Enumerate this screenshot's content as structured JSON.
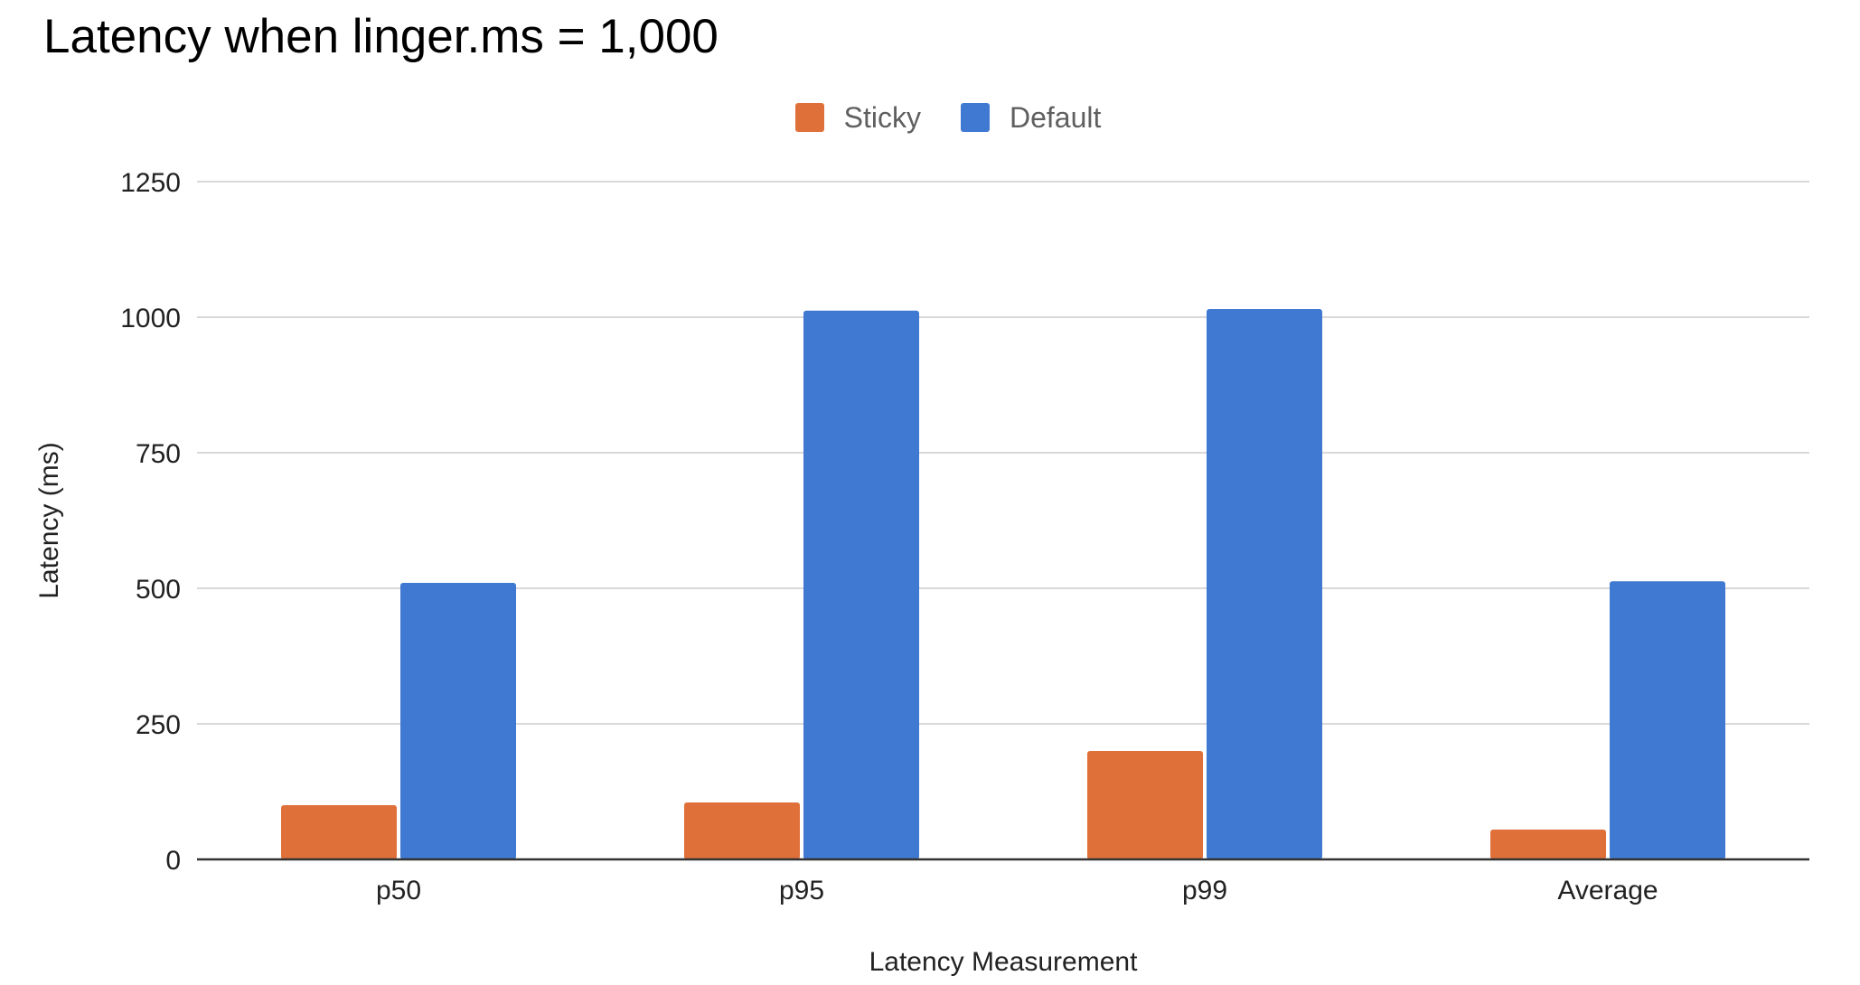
{
  "chart_data": {
    "type": "bar",
    "title": "Latency when linger.ms = 1,000",
    "xlabel": "Latency Measurement",
    "ylabel": "Latency (ms)",
    "categories": [
      "p50",
      "p95",
      "p99",
      "Average"
    ],
    "series": [
      {
        "name": "Sticky",
        "color": "#e0703a",
        "values": [
          100,
          105,
          200,
          55
        ]
      },
      {
        "name": "Default",
        "color": "#3f79d1",
        "values": [
          510,
          1012,
          1015,
          513
        ]
      }
    ],
    "ylim": [
      0,
      1250
    ],
    "yticks": [
      "0",
      "250",
      "500",
      "750",
      "1000",
      "1250"
    ],
    "legend_position": "top-center",
    "grid": true
  }
}
